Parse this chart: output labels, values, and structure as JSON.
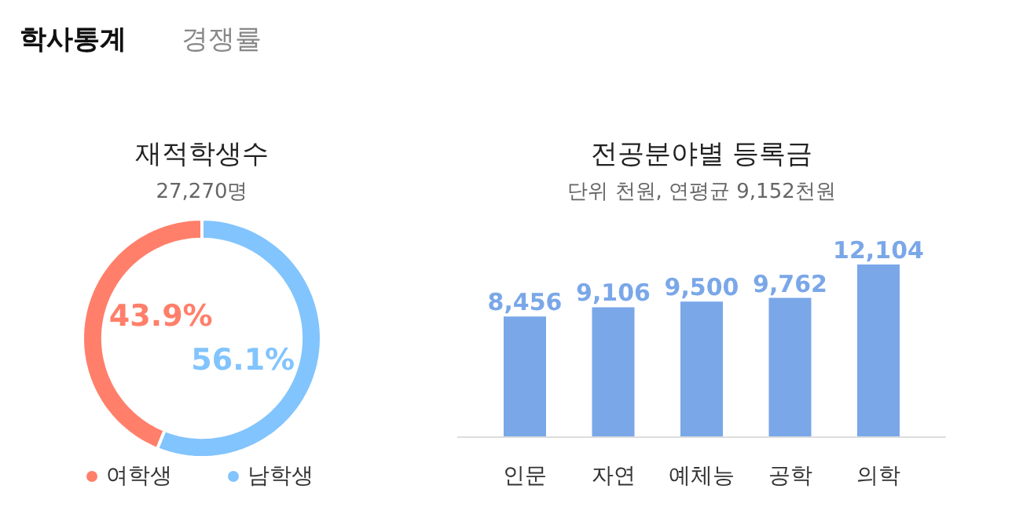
{
  "chart_data": [
    {
      "type": "donut",
      "title": "재적학생수",
      "subtitle": "27,270명",
      "annotations": [
        "학사통계",
        "경쟁률"
      ],
      "categories": [
        "여학생",
        "남학생"
      ],
      "values": [
        43.9,
        56.1
      ],
      "colors": [
        "#ff7f6a",
        "#82c4fd"
      ],
      "value_labels": [
        "43.9%",
        "56.1%"
      ],
      "legend": "bottom"
    },
    {
      "type": "bar",
      "title": "전공분야별 등록금",
      "subtitle": "단위 천원, 연평균 9,152천원",
      "categories": [
        "인문",
        "자연",
        "예체능",
        "공학",
        "의학"
      ],
      "values": [
        8456,
        9106,
        9500,
        9762,
        12104
      ],
      "color": "#7aa7e8",
      "value_labels": [
        "8,456",
        "9,106",
        "9,500",
        "9,762",
        "12,104"
      ]
    }
  ]
}
